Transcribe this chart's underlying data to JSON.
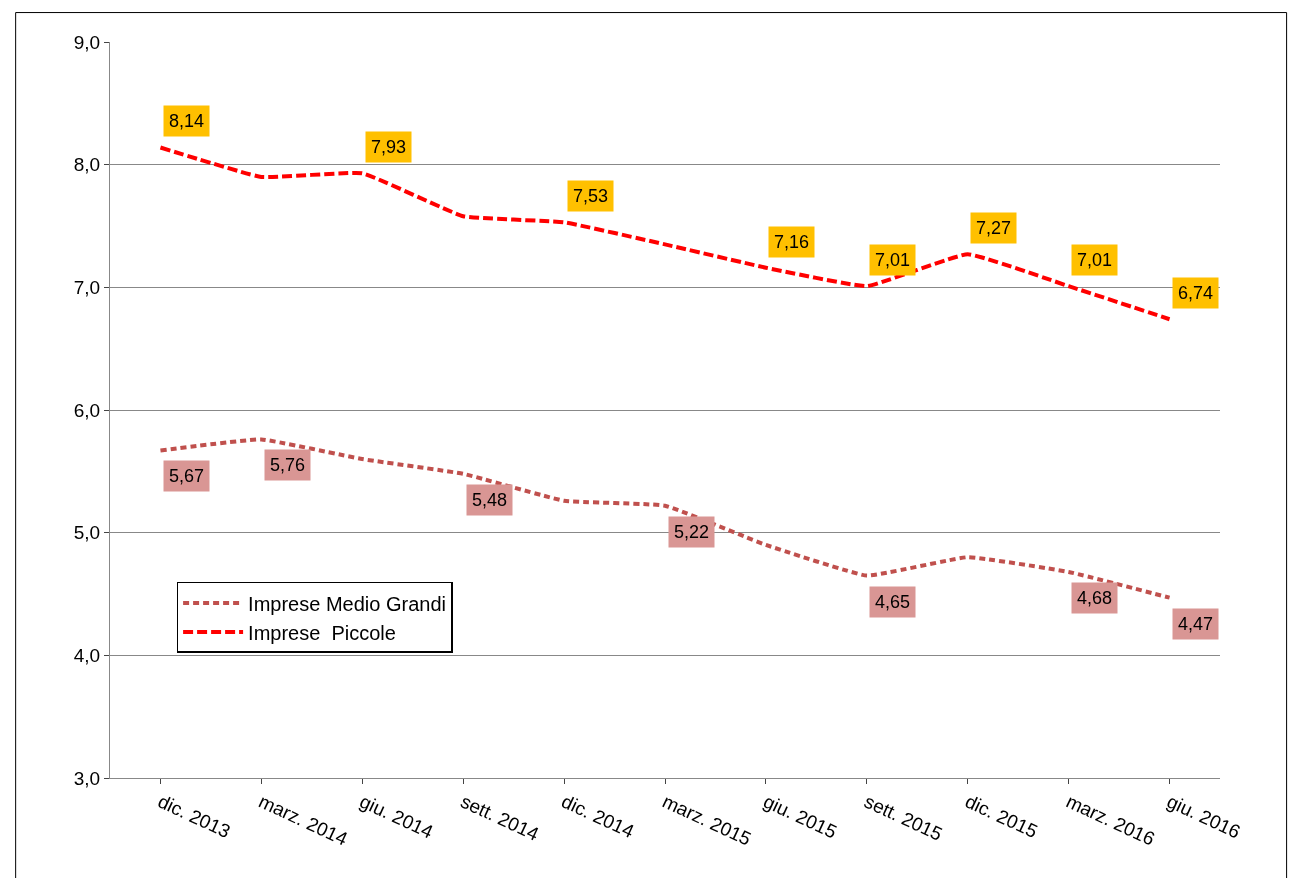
{
  "chart_data": {
    "type": "line",
    "categories": [
      "dic. 2013",
      "marz. 2014",
      "giu. 2014",
      "sett. 2014",
      "dic. 2014",
      "marz. 2015",
      "giu. 2015",
      "sett. 2015",
      "dic. 2015",
      "marz. 2016",
      "giu. 2016"
    ],
    "series": [
      {
        "name": "Imprese Medio Grandi",
        "color": "#c0504d",
        "line_style": "dashed",
        "values": [
          5.67,
          5.76,
          5.6,
          5.48,
          5.26,
          5.22,
          4.9,
          4.65,
          4.8,
          4.68,
          4.47
        ],
        "value_labels": [
          "5,67",
          "5,76",
          null,
          "5,48",
          null,
          "5,22",
          null,
          "4,65",
          null,
          "4,68",
          "4,47"
        ]
      },
      {
        "name": "Imprese  Piccole",
        "color": "#ff0000",
        "line_style": "dashed",
        "values": [
          8.14,
          7.9,
          7.93,
          7.58,
          7.53,
          7.35,
          7.16,
          7.01,
          7.27,
          7.01,
          6.74
        ],
        "value_labels": [
          "8,14",
          null,
          "7,93",
          null,
          "7,53",
          null,
          "7,16",
          "7,01",
          "7,27",
          "7,01",
          "6,74"
        ]
      }
    ],
    "ylim": [
      3,
      9
    ],
    "yticks": [
      {
        "value": 3,
        "label": "3,0"
      },
      {
        "value": 4,
        "label": "4,0"
      },
      {
        "value": 5,
        "label": "5,0"
      },
      {
        "value": 6,
        "label": "6,0"
      },
      {
        "value": 7,
        "label": "7,0"
      },
      {
        "value": 8,
        "label": "8,0"
      },
      {
        "value": 9,
        "label": "9,0"
      }
    ],
    "grid": "y",
    "legend": "bottom left",
    "marker": "none"
  }
}
